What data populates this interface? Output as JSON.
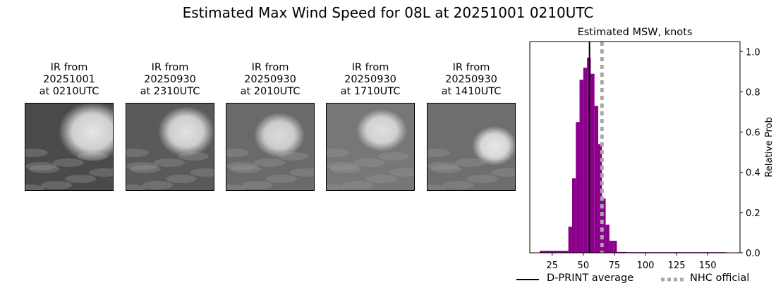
{
  "title": "Estimated Max Wind Speed for 08L at 20251001 0210UTC",
  "ir_panels": [
    {
      "caption": "IR from\n20251001\nat 0210UTC"
    },
    {
      "caption": "IR from\n20250930\nat 2310UTC"
    },
    {
      "caption": "IR from\n20250930\nat 2010UTC"
    },
    {
      "caption": "IR from\n20250930\nat 1710UTC"
    },
    {
      "caption": "IR from\n20250930\nat 1410UTC"
    }
  ],
  "chart_data": {
    "type": "bar",
    "title": "Estimated MSW, knots",
    "xlabel": "",
    "ylabel": "Relative Prob",
    "xlim": [
      7,
      176
    ],
    "ylim": [
      0,
      1.05
    ],
    "x_ticks": [
      25,
      50,
      75,
      100,
      125,
      150
    ],
    "y_ticks": [
      0.0,
      0.2,
      0.4,
      0.6,
      0.8,
      1.0
    ],
    "y_tick_labels": [
      "0.0",
      "0.2",
      "0.4",
      "0.6",
      "0.8",
      "1.0"
    ],
    "y_axis_side": "right",
    "bar_color": "#8b008b",
    "bins": [
      {
        "x0": 15,
        "x1": 20,
        "value": 0.01
      },
      {
        "x0": 20,
        "x1": 25,
        "value": 0.01
      },
      {
        "x0": 25,
        "x1": 30,
        "value": 0.01
      },
      {
        "x0": 30,
        "x1": 35,
        "value": 0.01
      },
      {
        "x0": 35,
        "x1": 38,
        "value": 0.01
      },
      {
        "x0": 38,
        "x1": 41,
        "value": 0.13
      },
      {
        "x0": 41,
        "x1": 44,
        "value": 0.37
      },
      {
        "x0": 44,
        "x1": 47,
        "value": 0.65
      },
      {
        "x0": 47,
        "x1": 50,
        "value": 0.86
      },
      {
        "x0": 50,
        "x1": 53,
        "value": 0.92
      },
      {
        "x0": 53,
        "x1": 56,
        "value": 0.97
      },
      {
        "x0": 56,
        "x1": 59,
        "value": 0.89
      },
      {
        "x0": 59,
        "x1": 62,
        "value": 0.73
      },
      {
        "x0": 62,
        "x1": 65,
        "value": 0.54
      },
      {
        "x0": 65,
        "x1": 68,
        "value": 0.27
      },
      {
        "x0": 68,
        "x1": 71,
        "value": 0.14
      },
      {
        "x0": 71,
        "x1": 74,
        "value": 0.06
      },
      {
        "x0": 74,
        "x1": 77,
        "value": 0.06
      },
      {
        "x0": 77,
        "x1": 85,
        "value": 0.004
      },
      {
        "x0": 85,
        "x1": 100,
        "value": 0.003
      },
      {
        "x0": 100,
        "x1": 130,
        "value": 0.003
      },
      {
        "x0": 130,
        "x1": 165,
        "value": 0.003
      }
    ],
    "dprint_average": 55,
    "nhc_official": 65,
    "legend": {
      "placement": "bottom",
      "entries": [
        {
          "label": "D-PRINT average",
          "color": "#000000",
          "style": "solid"
        },
        {
          "label": "NHC official",
          "color": "#a9a9a9",
          "style": "dotted"
        }
      ]
    }
  }
}
